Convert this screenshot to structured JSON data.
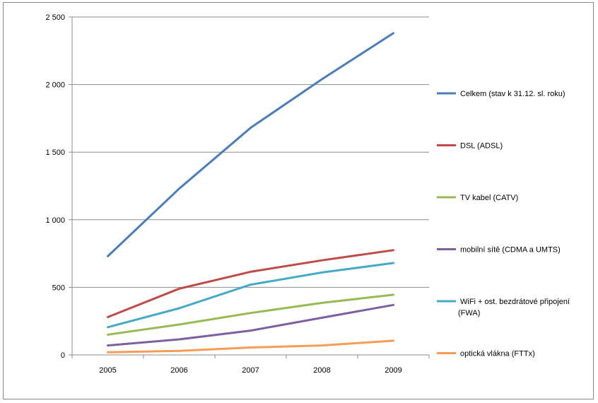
{
  "chart_data": {
    "type": "line",
    "title": "",
    "xlabel": "",
    "ylabel": "",
    "categories": [
      "2005",
      "2006",
      "2007",
      "2008",
      "2009"
    ],
    "ylim": [
      0,
      2500
    ],
    "yticks": [
      0,
      500,
      1000,
      1500,
      2000,
      2500
    ],
    "ytick_labels": [
      "0",
      "500",
      "1 000",
      "1 500",
      "2 000",
      "2 500"
    ],
    "grid": "horizontal",
    "legend_position": "right",
    "series": [
      {
        "name": "Celkem (stav k 31.12. sl. roku)",
        "values": [
          730,
          1230,
          1680,
          2040,
          2380
        ],
        "color": "#4a7ebb",
        "label_lines": [
          "Celkem (stav k 31.12. sl. roku)"
        ]
      },
      {
        "name": "DSL (ADSL)",
        "values": [
          280,
          490,
          615,
          700,
          775
        ],
        "color": "#be4b48",
        "label_lines": [
          "DSL (ADSL)"
        ]
      },
      {
        "name": "TV kabel (CATV)",
        "values": [
          150,
          225,
          310,
          385,
          445
        ],
        "color": "#98b954",
        "label_lines": [
          "TV kabel (CATV)"
        ]
      },
      {
        "name": "mobilní sítě (CDMA a UMTS)",
        "values": [
          70,
          115,
          180,
          275,
          370
        ],
        "color": "#7d60a0",
        "label_lines": [
          "mobilní sítě (CDMA a UMTS)"
        ]
      },
      {
        "name": "WiFi + ost. bezdrátové připojení (FWA)",
        "values": [
          205,
          345,
          520,
          610,
          680
        ],
        "color": "#46aac5",
        "label_lines": [
          "WiFi + ost. bezdrátové připojení",
          "(FWA)"
        ]
      },
      {
        "name": "optická vlákna (FTTx)",
        "values": [
          20,
          30,
          55,
          70,
          105
        ],
        "color": "#f59d56",
        "label_lines": [
          "optická vlákna (FTTx)"
        ]
      }
    ]
  }
}
